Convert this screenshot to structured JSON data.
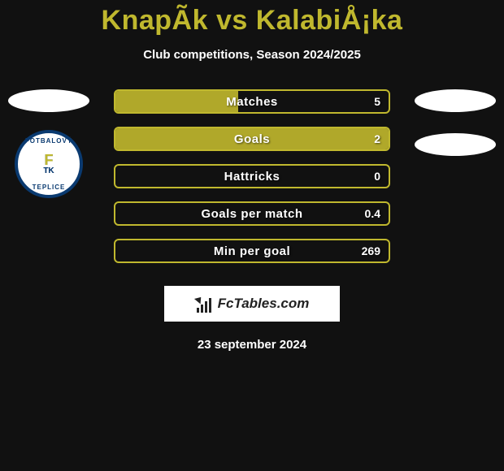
{
  "title": "KnapÃk vs KalabiÅ¡ka",
  "subtitle": "Club competitions, Season 2024/2025",
  "date": "23 september 2024",
  "colors": {
    "accent": "#c0b82e",
    "bar_fill": "#b0a82a",
    "background": "#111111",
    "text": "#ffffff",
    "badge_border": "#0a3a70"
  },
  "badge": {
    "top_text": "FOTBALOVÝ",
    "bottom_text": "TEPLICE",
    "inner_f": "F",
    "inner_tk": "TK"
  },
  "logo": {
    "text": "FcTables.com"
  },
  "stats": [
    {
      "label": "Matches",
      "value": "5",
      "fill_pct": 45
    },
    {
      "label": "Goals",
      "value": "2",
      "fill_pct": 100
    },
    {
      "label": "Hattricks",
      "value": "0",
      "fill_pct": 0
    },
    {
      "label": "Goals per match",
      "value": "0.4",
      "fill_pct": 0
    },
    {
      "label": "Min per goal",
      "value": "269",
      "fill_pct": 0
    }
  ]
}
